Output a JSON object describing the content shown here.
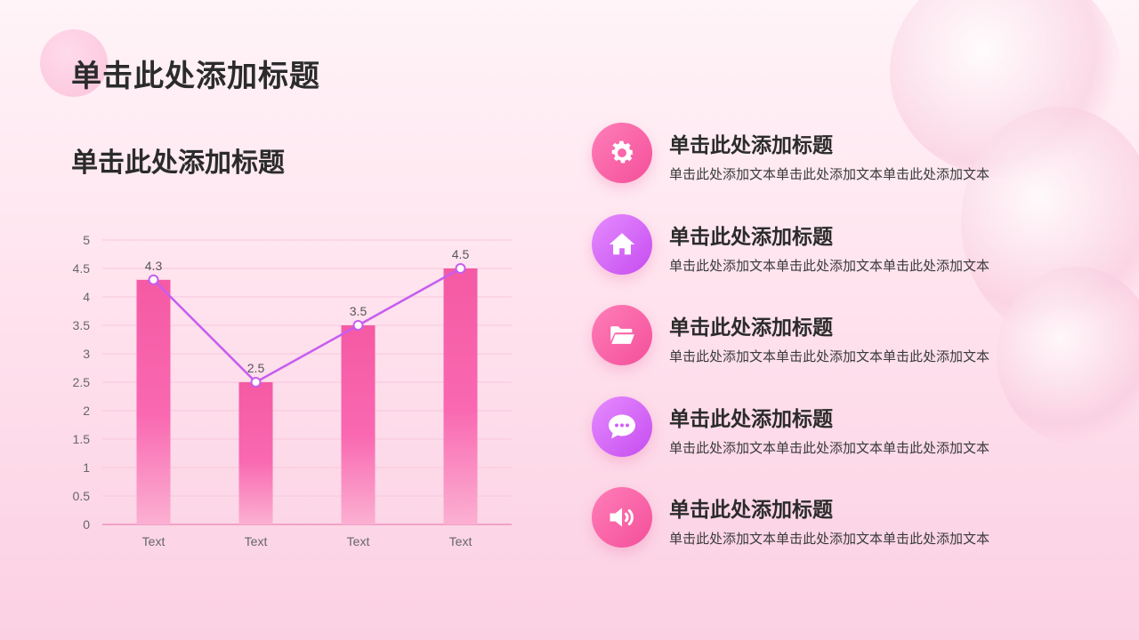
{
  "header": {
    "title": "单击此处添加标题"
  },
  "chart_section": {
    "title": "单击此处添加标题"
  },
  "chart_data": {
    "type": "bar",
    "categories": [
      "Text",
      "Text",
      "Text",
      "Text"
    ],
    "series": [
      {
        "type": "bar",
        "values": [
          4.3,
          2.5,
          3.5,
          4.5
        ]
      },
      {
        "type": "line",
        "values": [
          4.3,
          2.5,
          3.5,
          4.5
        ]
      }
    ],
    "data_labels": [
      "4.3",
      "2.5",
      "3.5",
      "4.5"
    ],
    "y_ticks": [
      "0",
      "0.5",
      "1",
      "1.5",
      "2",
      "2.5",
      "3",
      "3.5",
      "4",
      "4.5",
      "5"
    ],
    "ylim": [
      0,
      5
    ],
    "grid": true,
    "colors": {
      "bar": "#f977b5",
      "line": "#c75cf0",
      "grid": "#f7c7dd"
    }
  },
  "items": [
    {
      "icon": "gear-icon",
      "title": "单击此处添加标题",
      "desc": "单击此处添加文本单击此处添加文本单击此处添加文本"
    },
    {
      "icon": "home-icon",
      "title": "单击此处添加标题",
      "desc": "单击此处添加文本单击此处添加文本单击此处添加文本"
    },
    {
      "icon": "folder-open-icon",
      "title": "单击此处添加标题",
      "desc": "单击此处添加文本单击此处添加文本单击此处添加文本"
    },
    {
      "icon": "chat-bubble-icon",
      "title": "单击此处添加标题",
      "desc": "单击此处添加文本单击此处添加文本单击此处添加文本"
    },
    {
      "icon": "speaker-icon",
      "title": "单击此处添加标题",
      "desc": "单击此处添加文本单击此处添加文本单击此处添加文本"
    }
  ]
}
